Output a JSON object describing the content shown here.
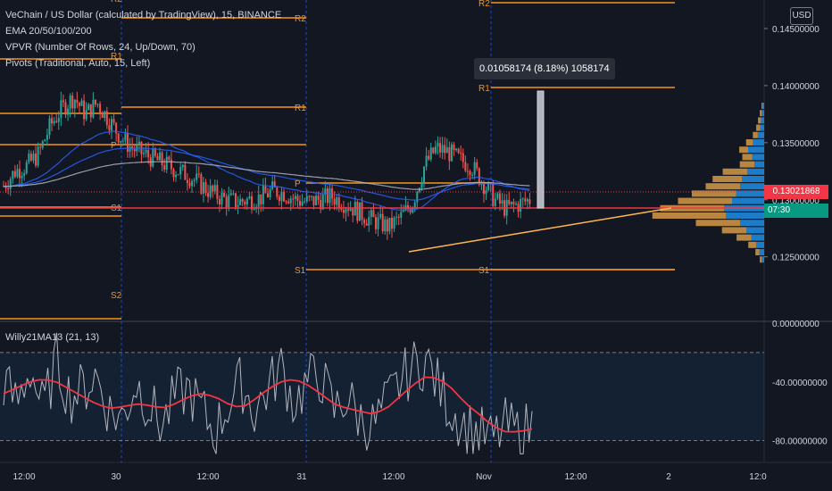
{
  "legend": {
    "symbol": "VeChain / US Dollar (calculated by TradingView), 15, BINANCE",
    "ema": "EMA 20/50/100/200",
    "vpvr": "VPVR (Number Of Rows, 24, Up/Down, 70)",
    "pivots": "Pivots (Traditional, Auto, 15, Left)"
  },
  "oscillator_label": "Willy21MA13 (21, 13)",
  "currency_button": "USD",
  "measure_label": "0.01058174 (8.18%) 1058174",
  "last_price": "0.13021868",
  "countdown": "07:30",
  "colors": {
    "background": "#131722",
    "up": "#26a69a",
    "down": "#ef5350",
    "pivot": "#f7931a",
    "ema_blue": "#2962ff",
    "willy": "#b2b5be",
    "willy_ma": "#f23645",
    "vpvr_up": "#2196f3",
    "vpvr_down": "#ffb74d"
  },
  "chart_data": [
    {
      "type": "candlestick",
      "title": "VeChain / US Dollar (calculated by TradingView), 15, BINANCE",
      "x_ticks": [
        "12:00",
        "30",
        "12:00",
        "31",
        "12:00",
        "Nov",
        "12:00",
        "2",
        "12:0"
      ],
      "y_ticks": [
        "0.14500000",
        "0.14000000",
        "0.13500000",
        "0.13000000",
        "0.12500000"
      ],
      "ylim": [
        0.1195,
        0.1475
      ],
      "pivot_labels": [
        {
          "label": "S1",
          "value": 0.1302
        },
        {
          "label": "S2",
          "value": 0.1255
        },
        {
          "label": "P",
          "value": 0.1338
        },
        {
          "label": "R1",
          "value": 0.1385
        },
        {
          "label": "R2",
          "value": 0.1465
        },
        {
          "label": "P",
          "value": 0.1322
        },
        {
          "label": "S1",
          "value": 0.1247
        },
        {
          "label": "R1",
          "value": 0.1402
        },
        {
          "label": "R2",
          "value": 0.1497
        },
        {
          "label": "S1",
          "value": 0.1247
        }
      ],
      "close_path": [
        0.1312,
        0.1325,
        0.133,
        0.134,
        0.1365,
        0.138,
        0.139,
        0.1375,
        0.1385,
        0.137,
        0.1355,
        0.1345,
        0.134,
        0.1335,
        0.133,
        0.1325,
        0.132,
        0.1312,
        0.1305,
        0.13,
        0.1298,
        0.13,
        0.1302,
        0.1308,
        0.1306,
        0.13,
        0.1298,
        0.13,
        0.1303,
        0.1298,
        0.1292,
        0.1285,
        0.128,
        0.1276,
        0.1285,
        0.1298,
        0.133,
        0.1345,
        0.1342,
        0.1335,
        0.133,
        0.1315,
        0.13,
        0.1292,
        0.1296,
        0.13
      ],
      "measure": {
        "from": 0.1294,
        "to": 0.14,
        "label": "0.01058174 (8.18%) 1058174"
      }
    },
    {
      "type": "line",
      "title": "Willy21MA13 (21, 13)",
      "y_ticks": [
        "0.00000000",
        "-40.00000000",
        "-80.00000000"
      ],
      "ylim": [
        -90,
        0
      ],
      "band": [
        -20,
        -80
      ],
      "series": [
        {
          "name": "Willy",
          "values": [
            -40,
            -55,
            -30,
            -60,
            -25,
            -50,
            -45,
            -35,
            -60,
            -65,
            -40,
            -55,
            -70,
            -50,
            -45,
            -60,
            -75,
            -55,
            -40,
            -60,
            -45,
            -30,
            -55,
            -40,
            -35,
            -60,
            -50,
            -65,
            -70,
            -55,
            -40,
            -30,
            -25,
            -45,
            -60,
            -70,
            -75,
            -80,
            -70,
            -75,
            -70
          ]
        },
        {
          "name": "MA",
          "values": [
            -48,
            -44,
            -40,
            -38,
            -40,
            -45,
            -50,
            -55,
            -58,
            -57,
            -55,
            -56,
            -58,
            -55,
            -50,
            -48,
            -50,
            -55,
            -58,
            -52,
            -45,
            -40,
            -38,
            -42,
            -48,
            -55,
            -58,
            -60,
            -62,
            -58,
            -50,
            -42,
            -36,
            -38,
            -45,
            -55,
            -62,
            -70,
            -74,
            -74,
            -72
          ]
        }
      ]
    }
  ]
}
